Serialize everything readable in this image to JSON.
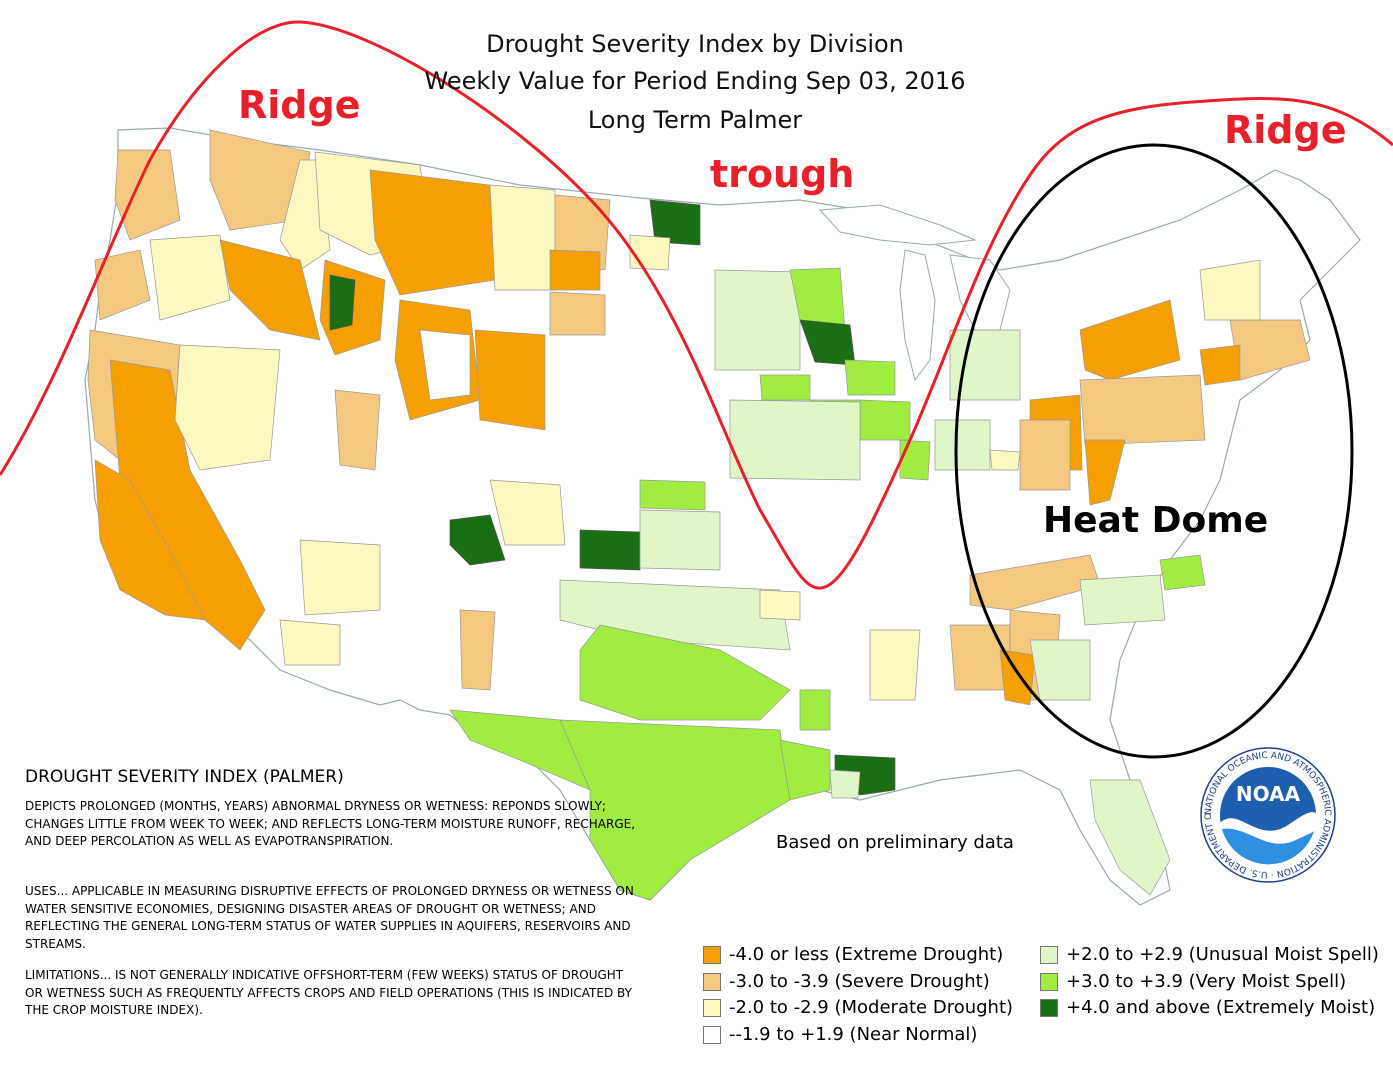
{
  "title": {
    "line1": "Drought Severity Index by Division",
    "line2": "Weekly Value for Period Ending Sep 03, 2016",
    "line3": "Long Term Palmer"
  },
  "annotations": {
    "ridge_west": "Ridge",
    "trough": "trough",
    "ridge_east": "Ridge",
    "heat_dome": "Heat Dome"
  },
  "description": {
    "title": "DROUGHT SEVERITY INDEX (PALMER)",
    "depicts": "DEPICTS PROLONGED (MONTHS, YEARS) ABNORMAL DRYNESS OR WETNESS: REPONDS SLOWLY; CHANGES LITTLE FROM WEEK TO WEEK; AND REFLECTS LONG-TERM MOISTURE RUNOFF, RECHARGE, AND DEEP PERCOLATION AS WELL AS EVAPOTRANSPIRATION.",
    "uses": "USES... APPLICABLE IN MEASURING DISRUPTIVE EFFECTS OF PROLONGED DRYNESS OR WETNESS ON WATER SENSITIVE ECONOMIES, DESIGNING DISASTER AREAS OF DROUGHT OR WETNESS; AND REFLECTING THE GENERAL LONG-TERM STATUS OF WATER SUPPLIES IN AQUIFERS, RESERVOIRS AND STREAMS.",
    "limitations": "LIMITATIONS... IS NOT GENERALLY INDICATIVE OFFSHORT-TERM (FEW WEEKS) STATUS OF DROUGHT OR WETNESS SUCH AS FREQUENTLY AFFECTS CROPS AND FIELD OPERATIONS (THIS IS INDICATED BY THE CROP MOISTURE INDEX)."
  },
  "note": "Based on preliminary data",
  "legend": [
    {
      "label": "-4.0 or less (Extreme Drought)",
      "color": "#f5a000"
    },
    {
      "label": "-3.0 to -3.9 (Severe Drought)",
      "color": "#f5c880"
    },
    {
      "label": "-2.0 to -2.9 (Moderate Drought)",
      "color": "#fdf8c0"
    },
    {
      "label": "--1.9 to +1.9 (Near Normal)",
      "color": "#ffffff"
    },
    {
      "label": "+2.0 to +2.9 (Unusual Moist Spell)",
      "color": "#e0f5c8"
    },
    {
      "label": "+3.0 to +3.9 (Very Moist Spell)",
      "color": "#a0ec40"
    },
    {
      "label": "+4.0 and above (Extremely Moist)",
      "color": "#1a6e14"
    }
  ],
  "logo": {
    "abbr": "NOAA",
    "ring_text": "NATIONAL OCEANIC AND ATMOSPHERIC ADMINISTRATION · U.S. DEPARTMENT OF COMMERCE"
  }
}
